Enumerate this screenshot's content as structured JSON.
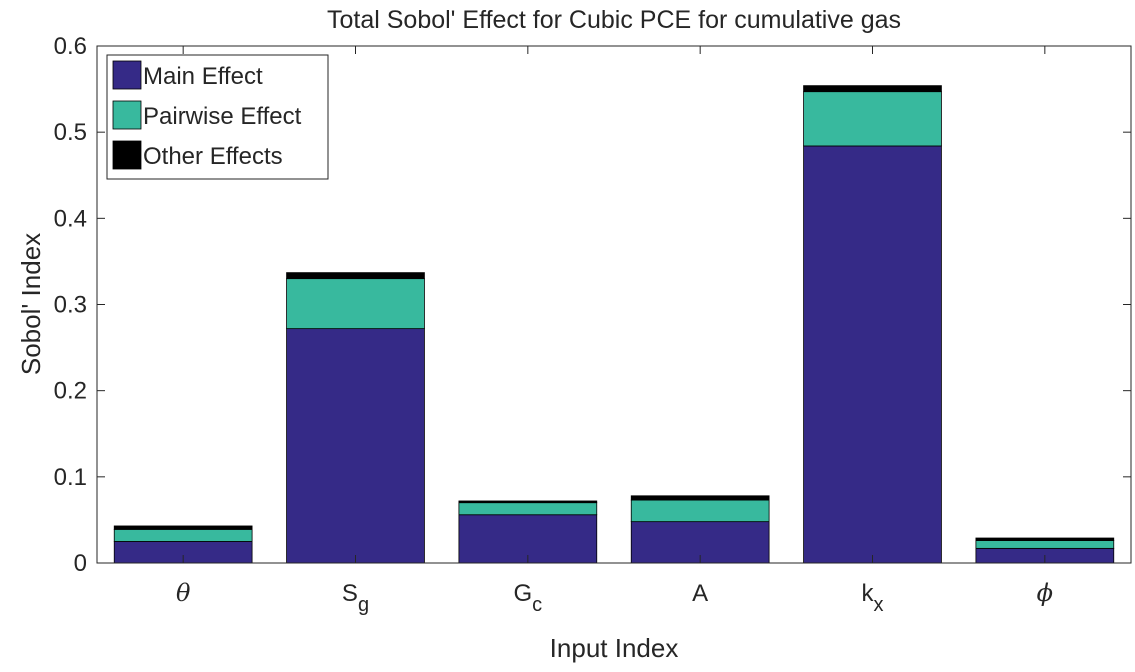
{
  "chart_data": {
    "type": "stacked_bar",
    "title": "Total Sobol' Effect for Cubic PCE for cumulative gas",
    "x_label": "Input Index",
    "y_label": "Sobol' Index",
    "categories": [
      {
        "text": "θ"
      },
      {
        "text": "S",
        "sub": "g"
      },
      {
        "text": "G",
        "sub": "c"
      },
      {
        "text": "A"
      },
      {
        "text": "k",
        "sub": "x"
      },
      {
        "text": "ϕ"
      }
    ],
    "series": [
      {
        "name": "Main Effect",
        "color": "#352a87",
        "values": [
          0.025,
          0.272,
          0.056,
          0.048,
          0.484,
          0.017
        ]
      },
      {
        "name": "Pairwise Effect",
        "color": "#38b99e",
        "values": [
          0.014,
          0.058,
          0.014,
          0.025,
          0.063,
          0.009
        ]
      },
      {
        "name": "Other Effects",
        "color": "#000000",
        "values": [
          0.004,
          0.007,
          0.002,
          0.005,
          0.007,
          0.003
        ]
      }
    ],
    "ylim": [
      0,
      0.6
    ],
    "yticks": [
      {
        "value": 0,
        "label": "0"
      },
      0.1,
      0.2,
      0.3,
      0.4,
      0.5,
      0.6
    ],
    "legend": "upper-left"
  }
}
